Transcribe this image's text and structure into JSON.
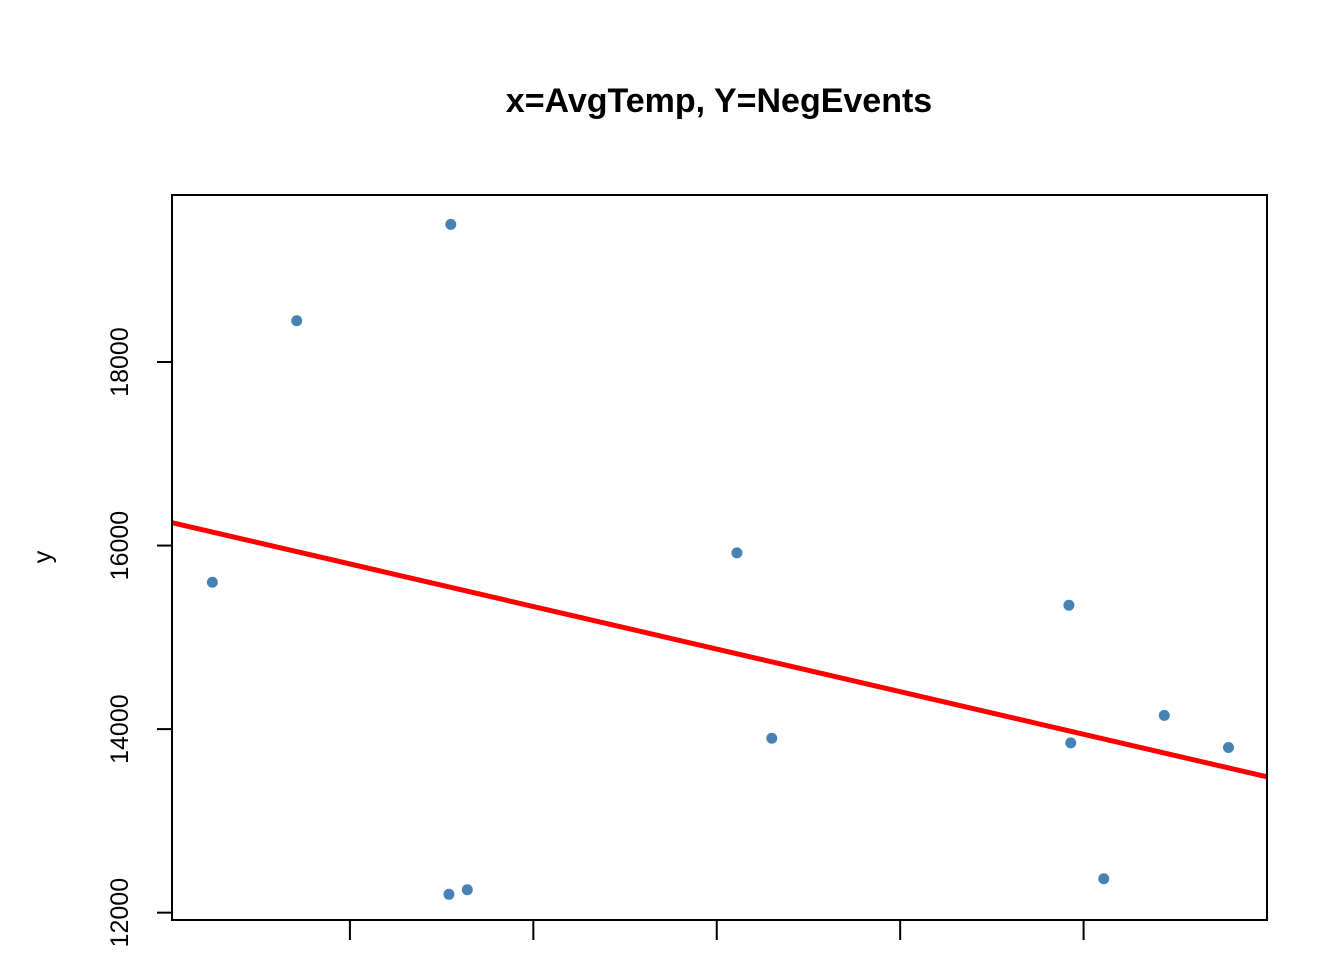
{
  "chart_data": {
    "type": "scatter",
    "title": "x=AvgTemp, Y=NegEvents",
    "xlabel": "",
    "ylabel": "y",
    "xlim": [
      0.78,
      6.75
    ],
    "ylim": [
      11920,
      19820
    ],
    "x_ticks": [
      1.75,
      2.75,
      3.75,
      4.75,
      5.75
    ],
    "y_ticks": [
      12000,
      14000,
      16000,
      18000
    ],
    "y_tick_labels": [
      "12000",
      "14000",
      "16000",
      "18000"
    ],
    "grid": false,
    "point_color": "#4682B4",
    "line_color": "#FF0000",
    "points": [
      {
        "x": 1.0,
        "y": 15600
      },
      {
        "x": 1.46,
        "y": 18450
      },
      {
        "x": 2.29,
        "y": 12200
      },
      {
        "x": 2.3,
        "y": 19500
      },
      {
        "x": 2.39,
        "y": 12250
      },
      {
        "x": 3.86,
        "y": 15920
      },
      {
        "x": 4.05,
        "y": 13900
      },
      {
        "x": 5.67,
        "y": 15350
      },
      {
        "x": 5.68,
        "y": 13850
      },
      {
        "x": 5.86,
        "y": 12370
      },
      {
        "x": 6.19,
        "y": 14150
      },
      {
        "x": 6.54,
        "y": 13800
      }
    ],
    "regression_line": {
      "x": [
        0.78,
        6.75
      ],
      "y": [
        16250,
        13480
      ]
    }
  }
}
